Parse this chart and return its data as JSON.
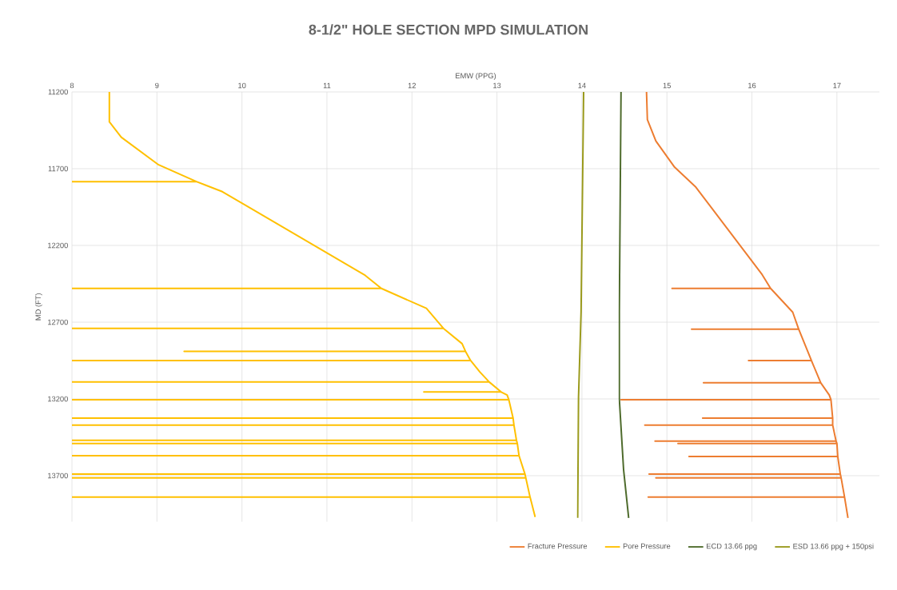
{
  "chart_data": {
    "type": "line",
    "title": "8-1/2\" HOLE SECTION MPD SIMULATION",
    "xlabel": "EMW (PPG)",
    "ylabel": "MD (FT)",
    "xlim": [
      8,
      17.5
    ],
    "ylim": [
      14000,
      11200
    ],
    "xticks": [
      8,
      9,
      10,
      11,
      12,
      13,
      14,
      15,
      16,
      17
    ],
    "yticks": [
      11200,
      11700,
      12200,
      12700,
      13200,
      13700
    ],
    "grid": true,
    "legend": "bottom",
    "marker": "none",
    "line_style": "solid",
    "series": [
      {
        "name": "Fracture Pressure",
        "color": "#ed7d31",
        "x": [
          14.76,
          14.77,
          14.87,
          15.09,
          15.34,
          16.12,
          16.22,
          15.06,
          16.22,
          16.48,
          16.55,
          15.29,
          16.55,
          16.7,
          15.96,
          16.7,
          16.81,
          15.43,
          16.81,
          16.91,
          16.93,
          14.46,
          16.93,
          16.95,
          15.42,
          16.95,
          16.95,
          14.74,
          16.95,
          16.99,
          14.86,
          16.99,
          17.0,
          15.13,
          17.0,
          17.01,
          15.26,
          17.01,
          17.04,
          14.79,
          17.04,
          17.05,
          14.87,
          17.05,
          17.09,
          14.78,
          17.09,
          17.13
        ],
        "values": [
          11200,
          11380,
          11520,
          11690,
          11820,
          12390,
          12480,
          12480,
          12480,
          12635,
          12745,
          12745,
          12745,
          12950,
          12950,
          12950,
          13095,
          13095,
          13095,
          13175,
          13205,
          13205,
          13205,
          13325,
          13325,
          13325,
          13370,
          13370,
          13370,
          13475,
          13475,
          13475,
          13490,
          13490,
          13490,
          13575,
          13575,
          13575,
          13690,
          13690,
          13690,
          13715,
          13715,
          13715,
          13840,
          13840,
          13840,
          13975
        ]
      },
      {
        "name": "Pore Pressure",
        "color": "#ffc000",
        "x": [
          8.44,
          8.44,
          8.58,
          9.02,
          9.47,
          8,
          9.47,
          9.77,
          11.45,
          11.64,
          8,
          11.64,
          12.17,
          12.37,
          8,
          12.37,
          12.59,
          12.63,
          9.32,
          12.63,
          12.69,
          8,
          12.69,
          12.8,
          12.91,
          8,
          12.91,
          13.05,
          12.14,
          13.05,
          13.12,
          13.14,
          8,
          13.14,
          13.19,
          8,
          13.19,
          13.2,
          8,
          13.2,
          13.23,
          8,
          13.23,
          13.24,
          8,
          13.24,
          13.26,
          8,
          13.26,
          13.33,
          8,
          13.33,
          13.34,
          8,
          13.34,
          13.39,
          8,
          13.39,
          13.45
        ],
        "values": [
          11200,
          11395,
          11495,
          11675,
          11785,
          11785,
          11785,
          11850,
          12395,
          12480,
          12480,
          12480,
          12610,
          12740,
          12740,
          12740,
          12840,
          12890,
          12890,
          12890,
          12950,
          12950,
          12950,
          13025,
          13090,
          13090,
          13090,
          13155,
          13155,
          13155,
          13175,
          13205,
          13205,
          13205,
          13325,
          13325,
          13325,
          13370,
          13370,
          13370,
          13470,
          13470,
          13470,
          13490,
          13490,
          13490,
          13570,
          13570,
          13570,
          13690,
          13690,
          13690,
          13715,
          13715,
          13715,
          13840,
          13840,
          13840,
          13970
        ]
      },
      {
        "name": "ECD 13.66 ppg",
        "color": "#4e6b2c",
        "x": [
          14.46,
          14.44,
          14.44,
          14.49,
          14.55
        ],
        "values": [
          11200,
          12635,
          13200,
          13660,
          13975
        ]
      },
      {
        "name": "ESD 13.66 ppg + 150psi",
        "color": "#9a9a1c",
        "x": [
          14.02,
          13.99,
          13.96,
          13.95
        ],
        "values": [
          11200,
          12635,
          13190,
          13975
        ]
      }
    ]
  }
}
